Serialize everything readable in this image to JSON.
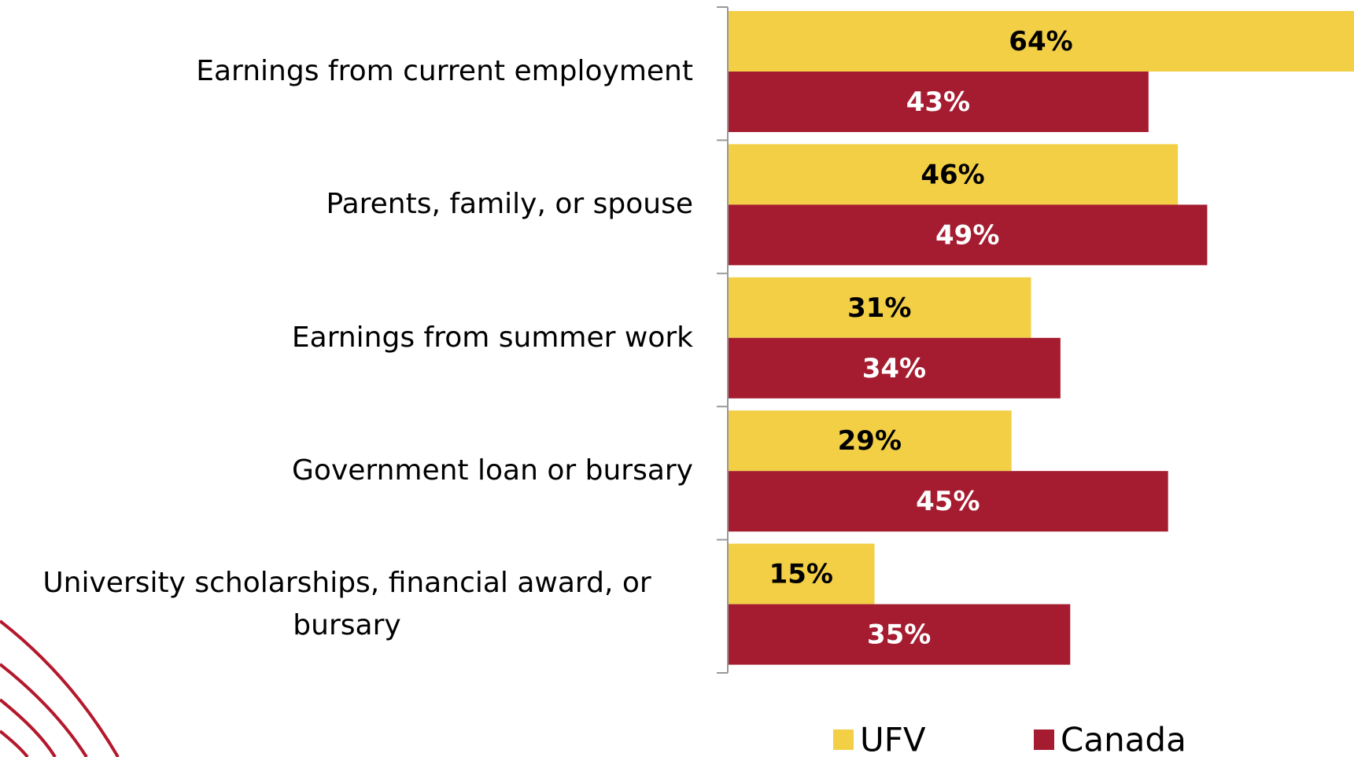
{
  "chart_data": {
    "type": "hbar",
    "categories": [
      "Earnings from current employment",
      "Parents, family, or spouse",
      "Earnings from summer work",
      "Government loan or bursary",
      "University scholarships, financial award, or bursary"
    ],
    "series": [
      {
        "name": "UFV",
        "color": "#f2cf45",
        "label_color": "#000000",
        "values": [
          64,
          46,
          31,
          29,
          15
        ],
        "value_labels": [
          "64%",
          "46%",
          "31%",
          "29%",
          "15%"
        ]
      },
      {
        "name": "Canada",
        "color": "#a51c30",
        "label_color": "#ffffff",
        "values": [
          43,
          49,
          34,
          45,
          35
        ],
        "value_labels": [
          "43%",
          "49%",
          "34%",
          "45%",
          "35%"
        ]
      }
    ],
    "xlim": [
      0,
      64
    ],
    "legend": "bottom"
  }
}
